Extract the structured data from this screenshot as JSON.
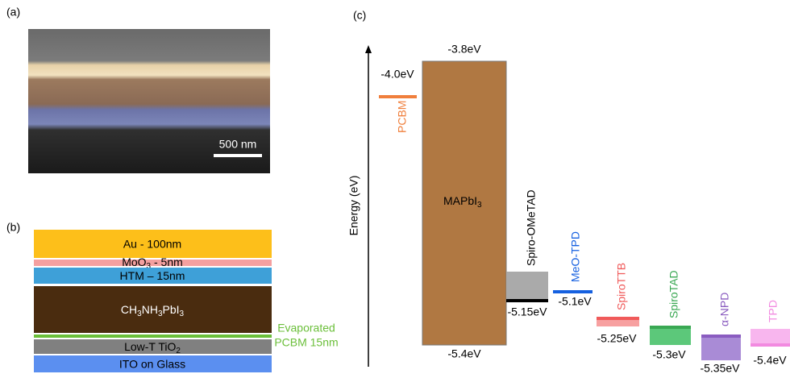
{
  "panel_a": {
    "label": "(a)",
    "scale_bar": "500 nm"
  },
  "panel_b": {
    "label": "(b)",
    "layers": [
      {
        "parts": [
          "Au - 100nm"
        ],
        "color": "#fdbf1a"
      },
      {
        "parts": [
          "MoO",
          "3",
          " - 5nm"
        ],
        "color": "#f4a0a0"
      },
      {
        "parts": [
          "HTM – 15nm"
        ],
        "color": "#3ea0d8"
      },
      {
        "parts": [
          "CH",
          "3",
          "NH",
          "3",
          "PbI",
          "3"
        ],
        "color": "#4a2c0f"
      },
      {
        "parts": [],
        "color": "#6bbf3a"
      },
      {
        "parts": [
          "Low-T TiO",
          "2"
        ],
        "color": "#808080"
      },
      {
        "parts": [
          "ITO on Glass"
        ],
        "color": "#5b8ff0"
      }
    ],
    "pcbm_note": [
      "Evaporated",
      "PCBM 15nm"
    ],
    "pcbm_note_color": "#6bbf3a"
  },
  "panel_c": {
    "label": "(c)",
    "axis_title": "Energy (eV)",
    "absorber": {
      "name_parts": [
        "MAPbI",
        "3"
      ],
      "color": "#b07842",
      "top": -3.8,
      "top_label": "-3.8eV",
      "bottom": -5.4,
      "bottom_label": "-5.4eV"
    },
    "levels": [
      {
        "name": "PCBM",
        "color": "#f07f3c",
        "value": -4.0,
        "label": "-4.0eV"
      },
      {
        "name": "Spiro-OMeTAD",
        "color": "#000000",
        "value": -5.15,
        "label": "-5.15eV"
      },
      {
        "name": "MeO-TPD",
        "color": "#1560e0",
        "value": -5.1,
        "label": "-5.1eV"
      },
      {
        "name": "SpiroTTB",
        "color": "#f05a5a",
        "value": -5.25,
        "label": "-5.25eV"
      },
      {
        "name": "SpiroTAD",
        "color": "#3aa853",
        "value": -5.3,
        "label": "-5.3eV"
      },
      {
        "name": "α-NPD",
        "color": "#8a5cc0",
        "value": -5.35,
        "label": "-5.35eV"
      },
      {
        "name": "TPD",
        "color": "#f28ae0",
        "value": -5.4,
        "label": "-5.4eV"
      }
    ]
  }
}
